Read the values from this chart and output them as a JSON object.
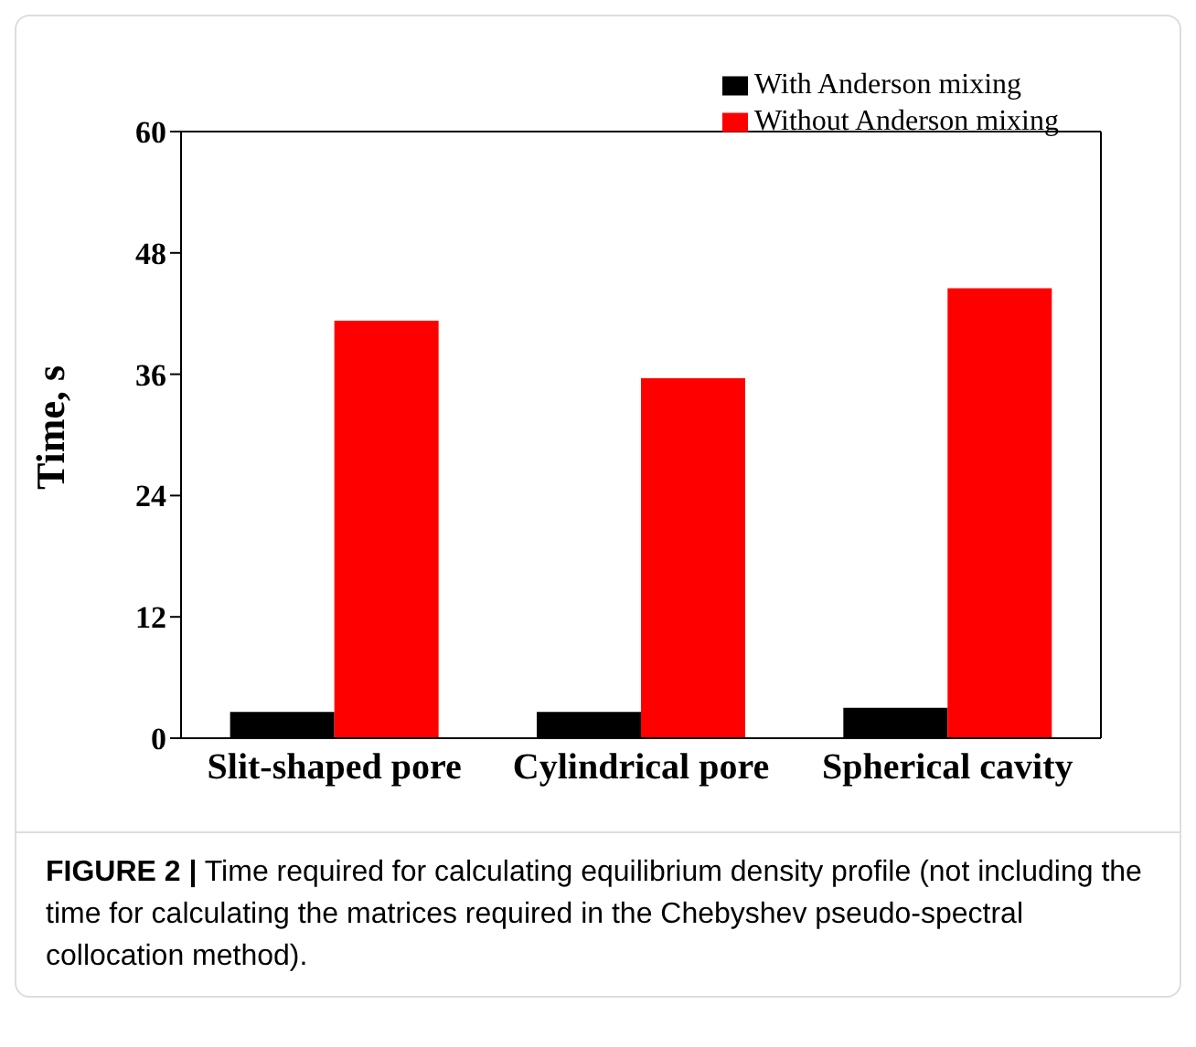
{
  "chart_data": {
    "type": "bar",
    "ylabel": "Time, s",
    "categories": [
      "Slit-shaped pore",
      "Cylindrical pore",
      "Spherical cavity"
    ],
    "series": [
      {
        "name": "With Anderson mixing",
        "color": "#000000",
        "values": [
          2.6,
          2.6,
          3.0
        ]
      },
      {
        "name": "Without Anderson mixing",
        "color": "#ff0000",
        "values": [
          41.3,
          35.6,
          44.5
        ]
      }
    ],
    "ylim": [
      0,
      60
    ],
    "yticks": [
      0,
      12,
      24,
      36,
      48,
      60
    ],
    "legend": "top right",
    "grid": false,
    "annotations": [
      "FIGURE 2 | Time required for calculating equilibrium density profile (not including the time for calculating the matrices required in the Chebyshev pseudo-spectral collocation method)."
    ]
  }
}
